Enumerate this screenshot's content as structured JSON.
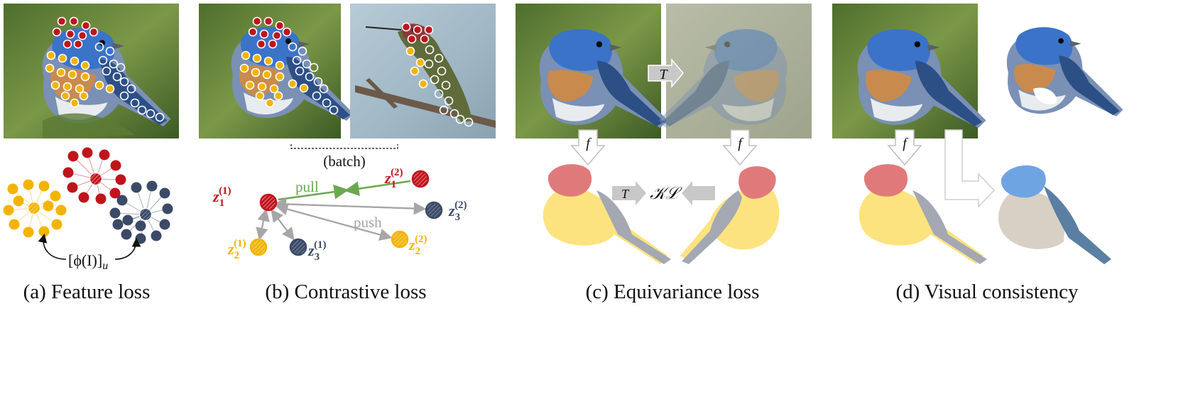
{
  "panels": {
    "a": {
      "caption": "(a) Feature loss",
      "phi_label": "[ϕ(I)]",
      "phi_sub": "u"
    },
    "b": {
      "caption": "(b) Contrastive loss",
      "batch_label": "(batch)",
      "pull_label": "pull",
      "push_label": "push",
      "nodes": [
        {
          "base": "z",
          "sub": "1",
          "sup": "(1)",
          "color": "#c0141c"
        },
        {
          "base": "z",
          "sub": "1",
          "sup": "(2)",
          "color": "#c0141c"
        },
        {
          "base": "z",
          "sub": "3",
          "sup": "(2)",
          "color": "#3b4a66"
        },
        {
          "base": "z",
          "sub": "2",
          "sup": "(1)",
          "color": "#f2b400"
        },
        {
          "base": "z",
          "sub": "3",
          "sup": "(1)",
          "color": "#3b4a66"
        },
        {
          "base": "z",
          "sub": "2",
          "sup": "(2)",
          "color": "#f2b400"
        }
      ]
    },
    "c": {
      "caption": "(c) Equivariance loss",
      "t_label": "T",
      "f_label": "f",
      "kl_label": "𝒦ℒ"
    },
    "d": {
      "caption": "(d) Visual consistency",
      "f_label": "f"
    }
  },
  "colors": {
    "red": "#c0141c",
    "yellow": "#f2b400",
    "navy": "#3b4a66",
    "head_red": "#e07a7a",
    "body_yellow": "#fde37f",
    "wing_gray": "#a3a8b2",
    "alt_blue": "#6fa4e2",
    "alt_beige": "#d8d0c4",
    "alt_steel": "#5a7fa3",
    "pull_green": "#6aa84f",
    "push_gray": "#a6a6a6"
  }
}
